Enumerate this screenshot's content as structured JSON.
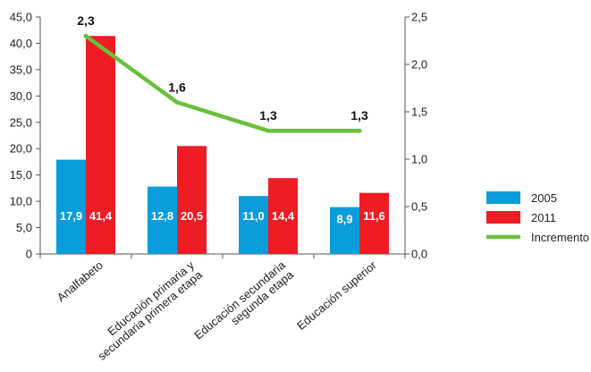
{
  "chart_data": {
    "type": "bar",
    "categories": [
      "Analfabeto",
      "Educación primaria y\nsecundaria primera etapa",
      "Educación secundaria\nsegunda etapa",
      "Educación superior"
    ],
    "series": [
      {
        "name": "2005",
        "values": [
          17.9,
          12.8,
          11.0,
          8.9
        ],
        "value_labels": [
          "17,9",
          "12,8",
          "11,0",
          "8,9"
        ],
        "color": "#0b9ddb"
      },
      {
        "name": "2011",
        "values": [
          41.4,
          20.5,
          14.4,
          11.6
        ],
        "value_labels": [
          "41,4",
          "20,5",
          "14,4",
          "11,6"
        ],
        "color": "#ee1c25"
      }
    ],
    "line_series": {
      "name": "Incremento",
      "axis": "right",
      "values": [
        2.3,
        1.6,
        1.3,
        1.3
      ],
      "value_labels": [
        "2,3",
        "1,6",
        "1,3",
        "1,3"
      ],
      "color": "#6bbf3b"
    },
    "left_axis": {
      "ylim": [
        0,
        45
      ],
      "ticks": [
        0,
        5,
        10,
        15,
        20,
        25,
        30,
        35,
        40,
        45
      ],
      "tick_labels": [
        "0",
        "5,0",
        "10,0",
        "15,0",
        "20,0",
        "25,0",
        "30,0",
        "35,0",
        "40,0",
        "45,0"
      ]
    },
    "right_axis": {
      "ylim": [
        0,
        2.5
      ],
      "ticks": [
        0,
        0.5,
        1.0,
        1.5,
        2.0,
        2.5
      ],
      "tick_labels": [
        "0,0",
        "0,5",
        "1,0",
        "1,5",
        "2,0",
        "2,5"
      ]
    },
    "legend": {
      "placement": "right",
      "entries": [
        {
          "label": "2005",
          "color": "#0b9ddb",
          "kind": "box"
        },
        {
          "label": "2011",
          "color": "#ee1c25",
          "kind": "box"
        },
        {
          "label": "Incremento",
          "color": "#6bbf3b",
          "kind": "line"
        }
      ]
    },
    "grid": false
  }
}
